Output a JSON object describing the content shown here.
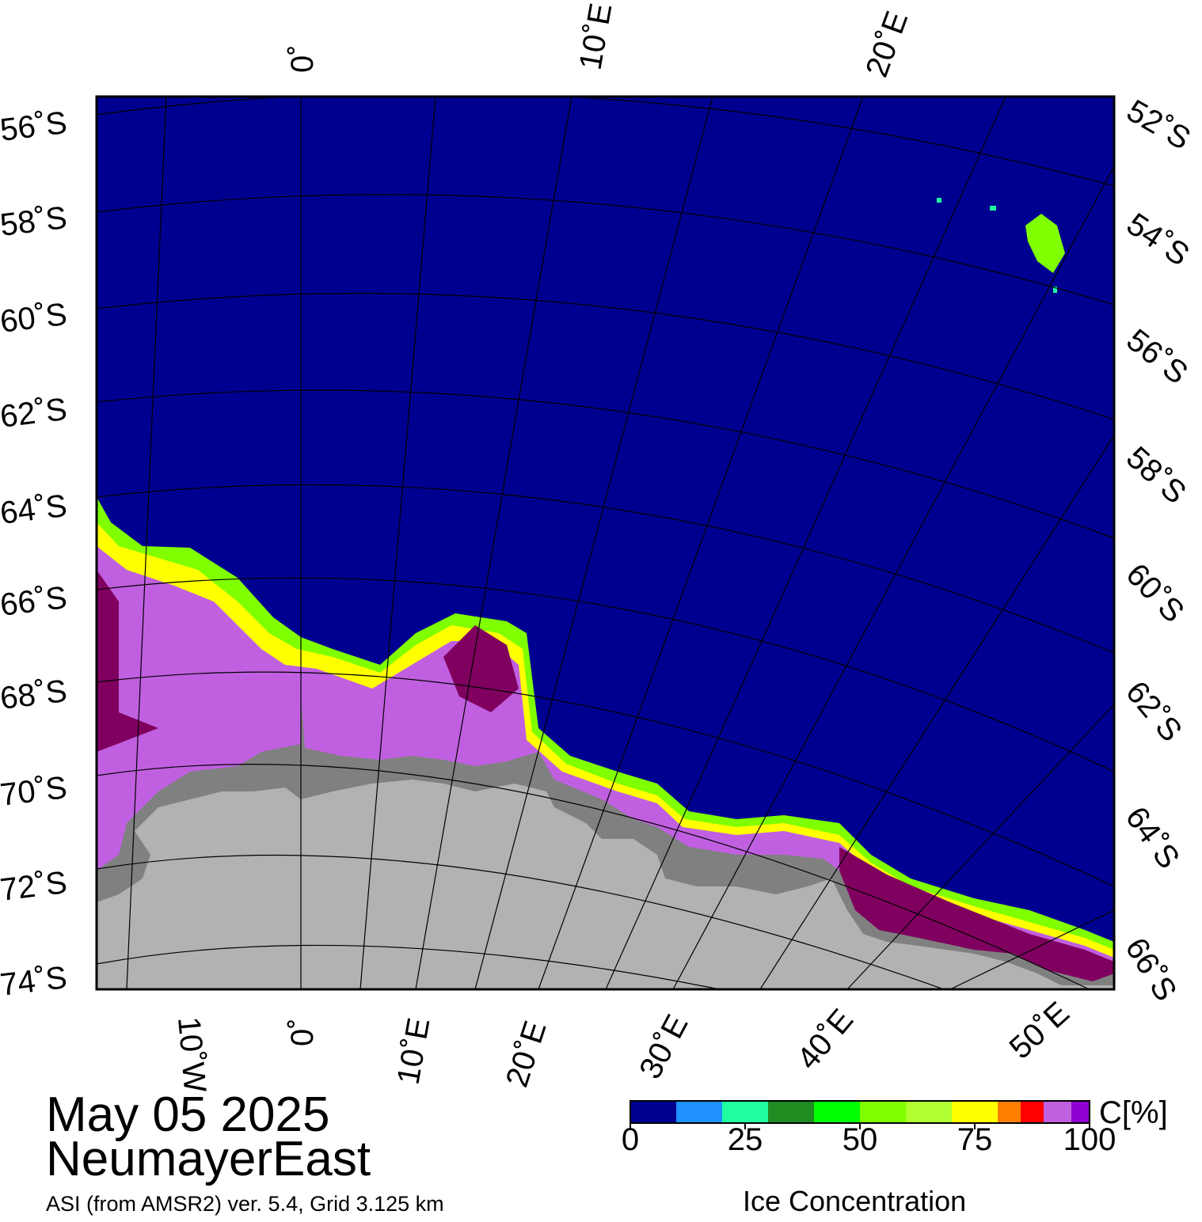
{
  "map": {
    "date": "May 05 2025",
    "region": "NeumayerEast",
    "product": "ASI (from AMSR2) ver. 5.4,  Grid 3.125 km",
    "colors": {
      "ocean": "#000090",
      "ice_shelf": "#808080",
      "land": "#b2b2b2",
      "grid": "#000000",
      "frame": "#000000"
    },
    "graticule_labels": {
      "top": [
        "0˚",
        "10˚E",
        "20˚E"
      ],
      "bottom": [
        "10˚W",
        "0˚",
        "10˚E",
        "20˚E",
        "30˚E",
        "40˚E",
        "50˚E"
      ],
      "left": [
        "56˚S",
        "58˚S",
        "60˚S",
        "62˚S",
        "64˚S",
        "66˚S",
        "68˚S",
        "70˚S",
        "72˚S",
        "74˚S"
      ],
      "right": [
        "52˚S",
        "54˚S",
        "56˚S",
        "58˚S",
        "60˚S",
        "62˚S",
        "64˚S",
        "66˚S"
      ]
    }
  },
  "colorbar": {
    "unit": "C[%]",
    "title": "Ice Concentration",
    "ticks": [
      "0",
      "25",
      "50",
      "75",
      "100"
    ],
    "bins": [
      {
        "from": 0,
        "to": 10,
        "color": "#000090"
      },
      {
        "from": 10,
        "to": 20,
        "color": "#1e90ff"
      },
      {
        "from": 20,
        "to": 30,
        "color": "#20ffa0"
      },
      {
        "from": 30,
        "to": 40,
        "color": "#228b22"
      },
      {
        "from": 40,
        "to": 50,
        "color": "#00ff00"
      },
      {
        "from": 50,
        "to": 60,
        "color": "#7fff00"
      },
      {
        "from": 60,
        "to": 70,
        "color": "#b0ff30"
      },
      {
        "from": 70,
        "to": 80,
        "color": "#ffff00"
      },
      {
        "from": 80,
        "to": 85,
        "color": "#ff8000"
      },
      {
        "from": 85,
        "to": 90,
        "color": "#ff0000"
      },
      {
        "from": 90,
        "to": 96,
        "color": "#c060e0"
      },
      {
        "from": 96,
        "to": 100,
        "color": "#9000d0"
      }
    ]
  }
}
